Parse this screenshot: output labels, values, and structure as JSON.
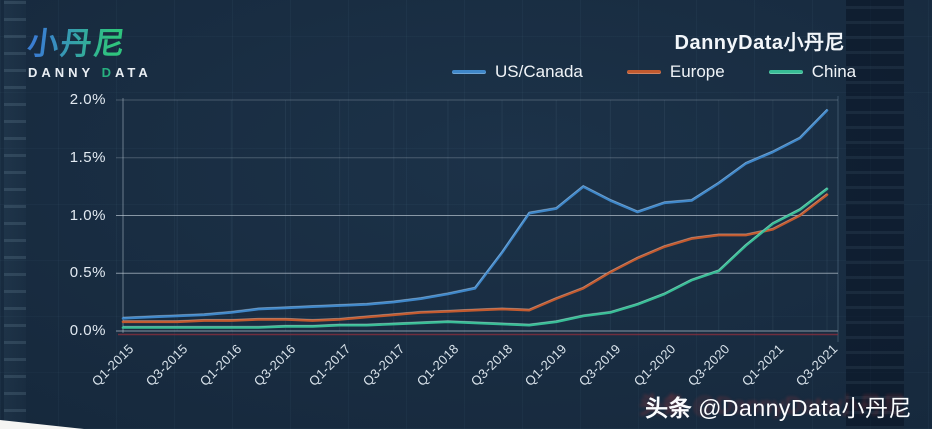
{
  "page": {
    "background_color": "#16293d",
    "text_color": "#f0f4f8"
  },
  "logo": {
    "symbol": "小丹尼",
    "word_part1": "DANNY ",
    "word_part2": "D",
    "word_part3": "ATA",
    "gradient_start": "#3a7ed2",
    "gradient_end": "#2fc47e"
  },
  "header": {
    "brand": "DannyData小丹尼"
  },
  "footer": {
    "platform": "头条",
    "handle": "@DannyData小丹尼"
  },
  "chart_data": {
    "type": "line",
    "title": "",
    "xlabel": "",
    "ylabel": "",
    "ylim": [
      0,
      2.0
    ],
    "grid": true,
    "legend_position": "top",
    "y_tick_labels": [
      "0.0%",
      "0.5%",
      "1.0%",
      "1.5%",
      "2.0%"
    ],
    "x_tick_labels": [
      "Q1-2015",
      "Q3-2015",
      "Q1-2016",
      "Q3-2016",
      "Q1-2017",
      "Q3-2017",
      "Q1-2018",
      "Q3-2018",
      "Q1-2019",
      "Q3-2019",
      "Q1-2020",
      "Q3-2020",
      "Q1-2021",
      "Q3-2021"
    ],
    "categories": [
      "Q1-2015",
      "Q2-2015",
      "Q3-2015",
      "Q4-2015",
      "Q1-2016",
      "Q2-2016",
      "Q3-2016",
      "Q4-2016",
      "Q1-2017",
      "Q2-2017",
      "Q3-2017",
      "Q4-2017",
      "Q1-2018",
      "Q2-2018",
      "Q3-2018",
      "Q4-2018",
      "Q1-2019",
      "Q2-2019",
      "Q3-2019",
      "Q4-2019",
      "Q1-2020",
      "Q2-2020",
      "Q3-2020",
      "Q4-2020",
      "Q1-2021",
      "Q2-2021",
      "Q3-2021"
    ],
    "series": [
      {
        "name": "US/Canada",
        "color": "#3f87c9",
        "values": [
          0.11,
          0.12,
          0.13,
          0.14,
          0.16,
          0.19,
          0.2,
          0.21,
          0.22,
          0.23,
          0.25,
          0.28,
          0.32,
          0.37,
          0.68,
          1.02,
          1.06,
          1.25,
          1.13,
          1.03,
          1.11,
          1.13,
          1.28,
          1.45,
          1.55,
          1.67,
          1.91
        ]
      },
      {
        "name": "Europe",
        "color": "#c25a2f",
        "values": [
          0.08,
          0.08,
          0.08,
          0.09,
          0.09,
          0.1,
          0.1,
          0.09,
          0.1,
          0.12,
          0.14,
          0.16,
          0.17,
          0.18,
          0.19,
          0.18,
          0.28,
          0.37,
          0.51,
          0.63,
          0.73,
          0.8,
          0.83,
          0.83,
          0.88,
          1.0,
          1.18
        ]
      },
      {
        "name": "China",
        "color": "#38bd96",
        "values": [
          0.03,
          0.03,
          0.03,
          0.03,
          0.03,
          0.03,
          0.04,
          0.04,
          0.05,
          0.05,
          0.06,
          0.07,
          0.08,
          0.07,
          0.06,
          0.05,
          0.08,
          0.13,
          0.16,
          0.23,
          0.32,
          0.44,
          0.52,
          0.74,
          0.93,
          1.05,
          1.23
        ]
      }
    ]
  }
}
